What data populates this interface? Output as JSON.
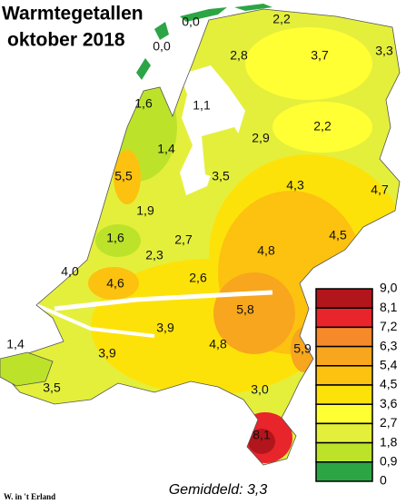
{
  "header": {
    "title": "Warmtegetallen",
    "subtitle": "oktober 2018"
  },
  "labels": [
    "0,0",
    "0,0",
    "2,2",
    "2,8",
    "3,7",
    "3,3",
    "1,6",
    "1,1",
    "2,2",
    "2,9",
    "1,4",
    "5,5",
    "3,5",
    "4,3",
    "4,7",
    "1,9",
    "2,7",
    "4,5",
    "1,6",
    "2,3",
    "4,8",
    "4,0",
    "4,6",
    "2,6",
    "5,8",
    "3,9",
    "4,8",
    "5,9",
    "1,4",
    "3,9",
    "3,0",
    "3,5",
    "8,1"
  ],
  "legend": {
    "labels": [
      "9,0",
      "8,1",
      "7,2",
      "6,3",
      "5,4",
      "4,5",
      "3,6",
      "2,7",
      "1,8",
      "0,9",
      "0"
    ],
    "colors": [
      "#b2151c",
      "#e8252a",
      "#f68a2a",
      "#f7a61e",
      "#fcc20f",
      "#fde20a",
      "#ffff33",
      "#e4ef3c",
      "#bce32a",
      "#2ca545"
    ]
  },
  "average": "Gemiddeld: 3,3",
  "credit": "W. in 't Erland"
}
